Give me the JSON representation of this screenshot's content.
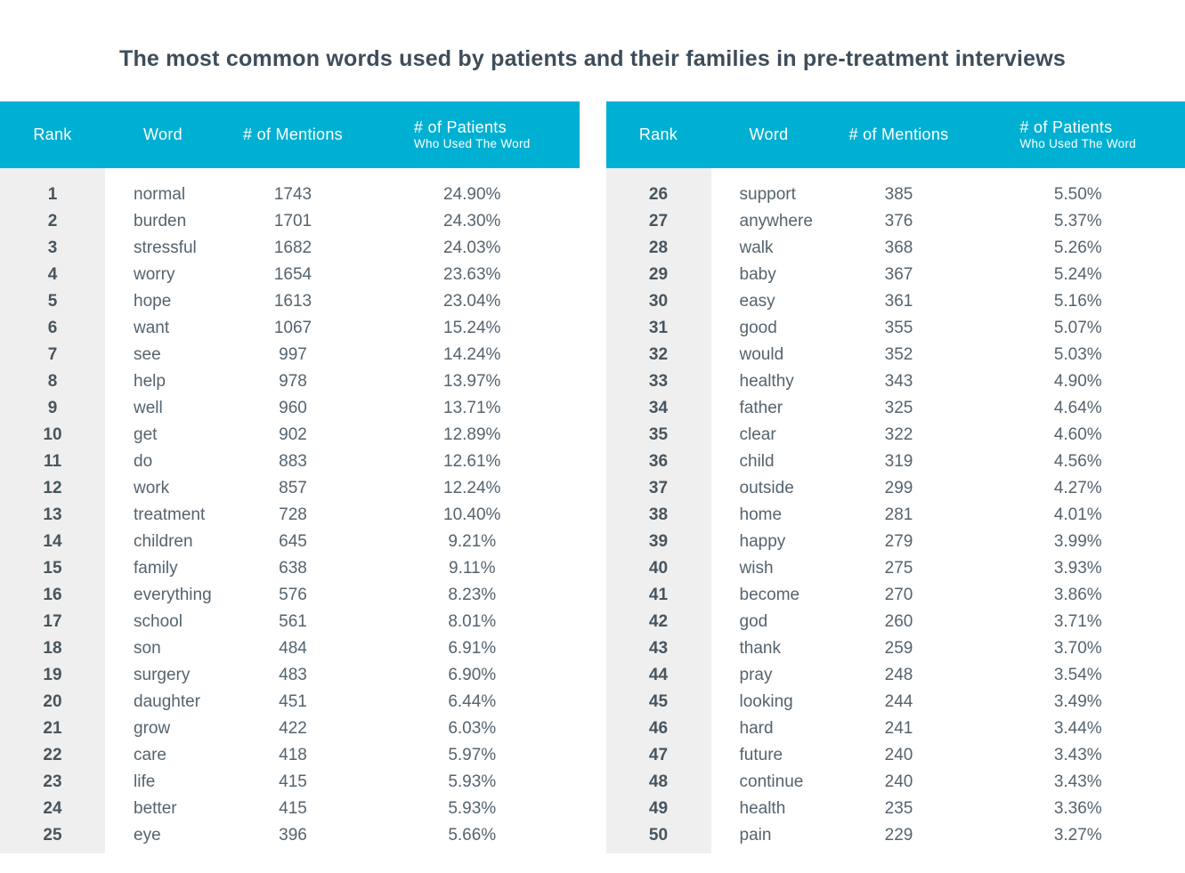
{
  "title": "The most common words used by patients and their families in pre-treatment interviews",
  "columns": {
    "rank": "Rank",
    "word": "Word",
    "mentions": "# of Mentions",
    "patients_line1": "# of Patients",
    "patients_line2": "Who Used The Word"
  },
  "colors": {
    "header_bg": "#00b0d3",
    "rank_col_bg": "#efefef",
    "title_text": "#3e4d5a",
    "body_text": "#55636e"
  },
  "chart_data": {
    "type": "table",
    "title": "The most common words used by patients and their families in pre-treatment interviews",
    "columns": [
      "Rank",
      "Word",
      "# of Mentions",
      "# of Patients Who Used The Word"
    ],
    "layout": "two tables side by side: ranks 1-25 left, ranks 26-50 right",
    "rows": [
      [
        1,
        "normal",
        1743,
        "24.90%"
      ],
      [
        2,
        "burden",
        1701,
        "24.30%"
      ],
      [
        3,
        "stressful",
        1682,
        "24.03%"
      ],
      [
        4,
        "worry",
        1654,
        "23.63%"
      ],
      [
        5,
        "hope",
        1613,
        "23.04%"
      ],
      [
        6,
        "want",
        1067,
        "15.24%"
      ],
      [
        7,
        "see",
        997,
        "14.24%"
      ],
      [
        8,
        "help",
        978,
        "13.97%"
      ],
      [
        9,
        "well",
        960,
        "13.71%"
      ],
      [
        10,
        "get",
        902,
        "12.89%"
      ],
      [
        11,
        "do",
        883,
        "12.61%"
      ],
      [
        12,
        "work",
        857,
        "12.24%"
      ],
      [
        13,
        "treatment",
        728,
        "10.40%"
      ],
      [
        14,
        "children",
        645,
        "9.21%"
      ],
      [
        15,
        "family",
        638,
        "9.11%"
      ],
      [
        16,
        "everything",
        576,
        "8.23%"
      ],
      [
        17,
        "school",
        561,
        "8.01%"
      ],
      [
        18,
        "son",
        484,
        "6.91%"
      ],
      [
        19,
        "surgery",
        483,
        "6.90%"
      ],
      [
        20,
        "daughter",
        451,
        "6.44%"
      ],
      [
        21,
        "grow",
        422,
        "6.03%"
      ],
      [
        22,
        "care",
        418,
        "5.97%"
      ],
      [
        23,
        "life",
        415,
        "5.93%"
      ],
      [
        24,
        "better",
        415,
        "5.93%"
      ],
      [
        25,
        "eye",
        396,
        "5.66%"
      ],
      [
        26,
        "support",
        385,
        "5.50%"
      ],
      [
        27,
        "anywhere",
        376,
        "5.37%"
      ],
      [
        28,
        "walk",
        368,
        "5.26%"
      ],
      [
        29,
        "baby",
        367,
        "5.24%"
      ],
      [
        30,
        "easy",
        361,
        "5.16%"
      ],
      [
        31,
        "good",
        355,
        "5.07%"
      ],
      [
        32,
        "would",
        352,
        "5.03%"
      ],
      [
        33,
        "healthy",
        343,
        "4.90%"
      ],
      [
        34,
        "father",
        325,
        "4.64%"
      ],
      [
        35,
        "clear",
        322,
        "4.60%"
      ],
      [
        36,
        "child",
        319,
        "4.56%"
      ],
      [
        37,
        "outside",
        299,
        "4.27%"
      ],
      [
        38,
        "home",
        281,
        "4.01%"
      ],
      [
        39,
        "happy",
        279,
        "3.99%"
      ],
      [
        40,
        "wish",
        275,
        "3.93%"
      ],
      [
        41,
        "become",
        270,
        "3.86%"
      ],
      [
        42,
        "god",
        260,
        "3.71%"
      ],
      [
        43,
        "thank",
        259,
        "3.70%"
      ],
      [
        44,
        "pray",
        248,
        "3.54%"
      ],
      [
        45,
        "looking",
        244,
        "3.49%"
      ],
      [
        46,
        "hard",
        241,
        "3.44%"
      ],
      [
        47,
        "future",
        240,
        "3.43%"
      ],
      [
        48,
        "continue",
        240,
        "3.43%"
      ],
      [
        49,
        "health",
        235,
        "3.36%"
      ],
      [
        50,
        "pain",
        229,
        "3.27%"
      ]
    ]
  }
}
